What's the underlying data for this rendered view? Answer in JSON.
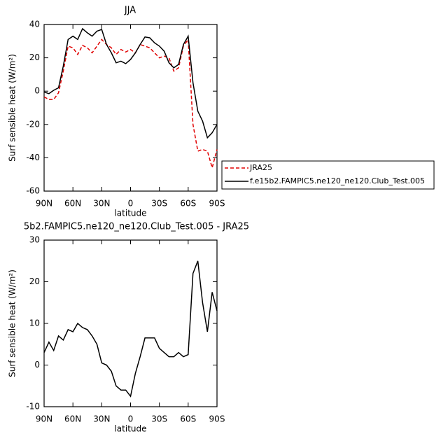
{
  "chart_data": [
    {
      "type": "line",
      "title": "JJA",
      "xlabel": "latitude",
      "ylabel": "Surf sensible heat (W/m²)",
      "x": [
        90,
        85,
        80,
        75,
        70,
        65,
        60,
        55,
        50,
        45,
        40,
        35,
        30,
        25,
        20,
        15,
        10,
        5,
        0,
        -5,
        -10,
        -15,
        -20,
        -25,
        -30,
        -35,
        -40,
        -45,
        -50,
        -55,
        -60,
        -65,
        -70,
        -75,
        -80,
        -85,
        -90
      ],
      "xlim": [
        90,
        -90
      ],
      "xticks": [
        {
          "value": 90,
          "label": "90N"
        },
        {
          "value": 60,
          "label": "60N"
        },
        {
          "value": 30,
          "label": "30N"
        },
        0,
        {
          "value": -30,
          "label": "30S"
        },
        {
          "value": -60,
          "label": "60S"
        },
        {
          "value": -90,
          "label": "90S"
        }
      ],
      "ylim": [
        -60,
        40
      ],
      "yticks": [
        -60,
        -40,
        -20,
        0,
        20,
        40
      ],
      "legend": "right",
      "series": [
        {
          "name": "JRA25",
          "color": "#e00000",
          "linestyle": "dashed",
          "values": [
            -3.5,
            -5,
            -5,
            -1,
            12,
            27,
            26,
            22,
            27.5,
            26,
            23,
            27,
            31,
            28,
            26,
            22,
            25,
            23.5,
            25,
            23,
            28,
            27,
            26,
            23,
            20,
            21,
            20,
            12,
            14,
            27,
            31,
            -20,
            -36,
            -35,
            -36,
            -46,
            -35
          ]
        },
        {
          "name": "f.e15b2.FAMPIC5.ne120_ne120.Club_Test.005",
          "color": "#000000",
          "linestyle": "solid",
          "values": [
            -0.5,
            -1.5,
            0.5,
            2,
            15,
            31,
            33,
            31,
            37.5,
            35,
            33,
            36,
            37,
            28,
            23,
            17,
            18,
            16.5,
            19,
            23,
            28,
            32.5,
            32,
            29,
            27,
            24,
            17,
            14,
            16,
            28,
            33,
            5,
            -12,
            -18,
            -28,
            -25,
            -20
          ]
        }
      ]
    },
    {
      "type": "line",
      "title": "5b2.FAMPIC5.ne120_ne120.Club_Test.005 - JRA25",
      "xlabel": "latitude",
      "ylabel": "Surf sensible heat (W/m²)",
      "x": [
        90,
        85,
        80,
        75,
        70,
        65,
        60,
        55,
        50,
        45,
        40,
        35,
        30,
        25,
        20,
        15,
        10,
        5,
        0,
        -5,
        -10,
        -15,
        -20,
        -25,
        -30,
        -35,
        -40,
        -45,
        -50,
        -55,
        -60,
        -65,
        -70,
        -75,
        -80,
        -85,
        -90
      ],
      "xlim": [
        90,
        -90
      ],
      "xticks": [
        {
          "value": 90,
          "label": "90N"
        },
        {
          "value": 60,
          "label": "60N"
        },
        {
          "value": 30,
          "label": "30N"
        },
        0,
        {
          "value": -30,
          "label": "30S"
        },
        {
          "value": -60,
          "label": "60S"
        },
        {
          "value": -90,
          "label": "90S"
        }
      ],
      "ylim": [
        -10,
        30
      ],
      "yticks": [
        -10,
        0,
        10,
        20,
        30
      ],
      "series": [
        {
          "color": "#000000",
          "linestyle": "solid",
          "values": [
            3,
            5.5,
            3.5,
            7,
            6,
            8.5,
            8,
            10,
            9,
            8.5,
            7,
            5,
            0.5,
            0,
            -1.5,
            -5,
            -6,
            -6,
            -7.5,
            -2,
            2,
            6.5,
            6.5,
            6.5,
            4,
            3,
            2,
            2,
            3,
            2,
            2.5,
            22,
            25,
            15,
            8,
            17.5,
            13
          ]
        }
      ]
    }
  ]
}
